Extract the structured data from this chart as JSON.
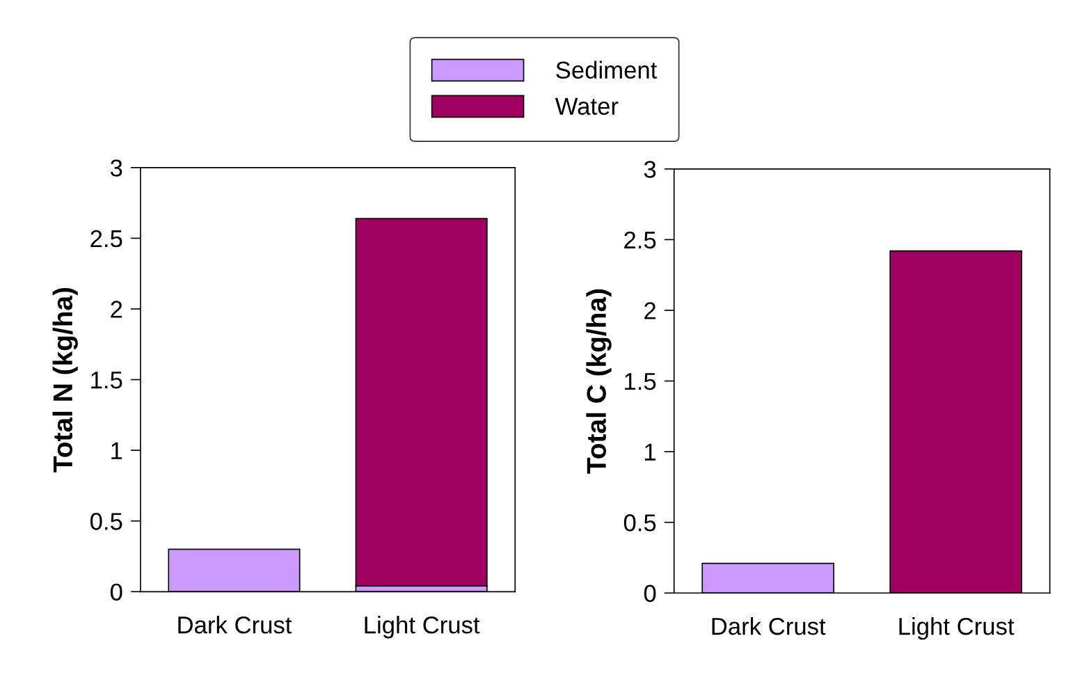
{
  "chart_data": [
    {
      "type": "bar",
      "stacked": true,
      "ylabel": "Total N (kg/ha)",
      "categories": [
        "Dark Crust",
        "Light Crust"
      ],
      "legend": "top",
      "series": [
        {
          "name": "Sediment",
          "color": "#cc99ff",
          "values": [
            0.3,
            0.04
          ]
        },
        {
          "name": "Water",
          "color": "#a00060",
          "values": [
            null,
            2.6
          ]
        }
      ],
      "ylim": [
        0,
        3
      ],
      "yticks": [
        0,
        0.5,
        1,
        1.5,
        2,
        2.5,
        3
      ],
      "grid": false
    },
    {
      "type": "bar",
      "stacked": true,
      "ylabel": "Total C (kg/ha)",
      "categories": [
        "Dark Crust",
        "Light Crust"
      ],
      "series": [
        {
          "color": "#cc99ff",
          "values": [
            0.21,
            null
          ]
        },
        {
          "color": "#a00060",
          "values": [
            null,
            2.42
          ]
        }
      ],
      "ylim": [
        0,
        3
      ],
      "yticks": [
        0,
        0.5,
        1,
        1.5,
        2,
        2.5,
        3
      ],
      "grid": false
    }
  ]
}
